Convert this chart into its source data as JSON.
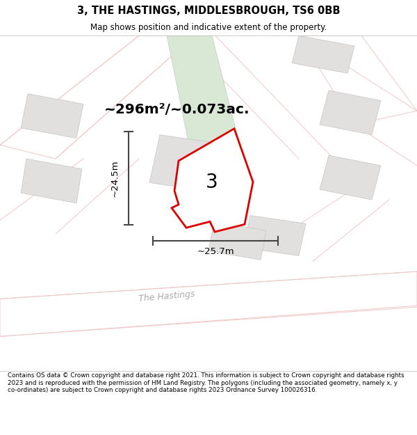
{
  "title": "3, THE HASTINGS, MIDDLESBROUGH, TS6 0BB",
  "subtitle": "Map shows position and indicative extent of the property.",
  "area_text": "~296m²/~0.073ac.",
  "dim_h": "~24.5m",
  "dim_w": "~25.7m",
  "plot_number": "3",
  "footer": "Contains OS data © Crown copyright and database right 2021. This information is subject to Crown copyright and database rights 2023 and is reproduced with the permission of HM Land Registry. The polygons (including the associated geometry, namely x, y co-ordinates) are subject to Crown copyright and database rights 2023 Ordnance Survey 100026316.",
  "bg_color": "#f2f0f0",
  "road_color": "#f0c8c8",
  "road_fill": "#ffffff",
  "plot_fill": "#ffffff",
  "plot_edge": "#dd0000",
  "green_fill": "#d8e8d4",
  "building_fill": "#e2dfdf",
  "street_label": "The Hastings",
  "dim_color": "#444444"
}
